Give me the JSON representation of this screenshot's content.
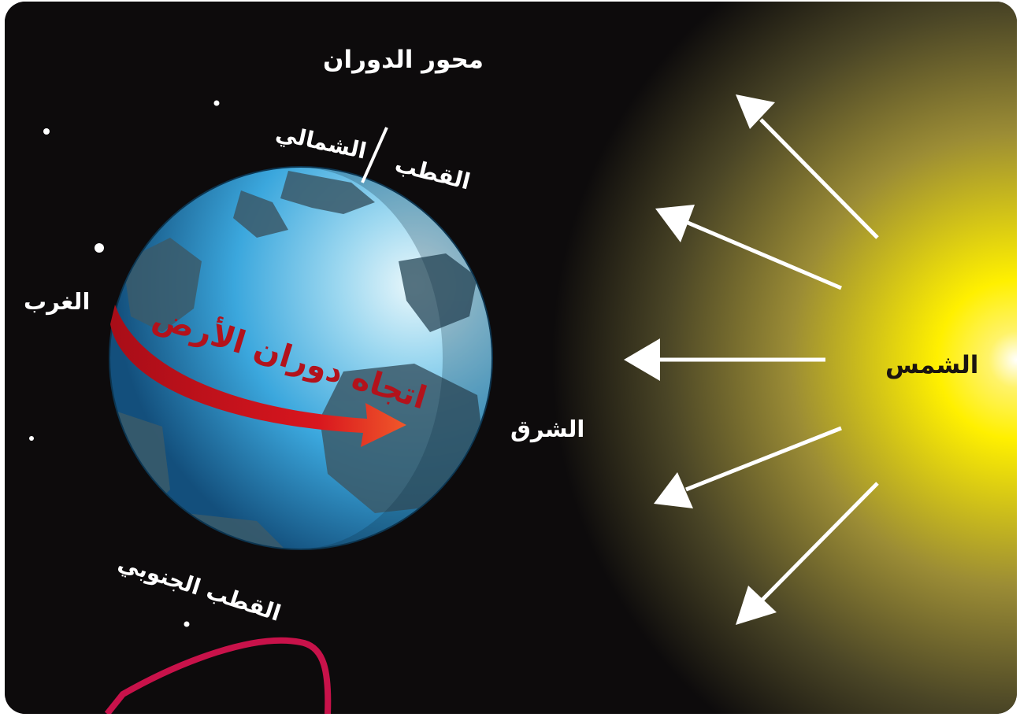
{
  "labels": {
    "rotation_axis": "محور الدوران",
    "north_pole_line1": "الشمالي",
    "north_pole_line2": "القطب",
    "west": "الغرب",
    "east": "الشرق",
    "sun": "الشمس",
    "south_pole": "القطب الجنوبي",
    "earth_rotation_direction": "اتجاه دوران الأرض"
  },
  "colors": {
    "space": "#0d0b0c",
    "sun_core": "#ffffff",
    "sun_glow": "#ffe600",
    "ocean": "#3ba7dd",
    "land": "#3b5a6a",
    "rotation_arrow": "#c8121c",
    "light_rays": "#ffffff",
    "frame_accent": "#c8124a"
  },
  "icons": {
    "sun_rays": "white-arrow-icon",
    "rotation_arrow": "curved-arrow-icon",
    "stars": "star-icon"
  }
}
